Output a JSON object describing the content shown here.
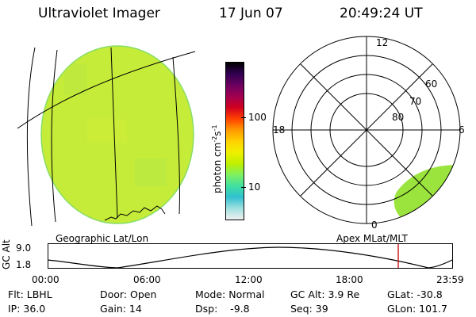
{
  "header": {
    "title": "Ultraviolet Imager",
    "date": "17 Jun 07",
    "time": "20:49:24 UT"
  },
  "colorbar": {
    "unit_label": "photon cm",
    "unit_exp1": "-2",
    "unit_mid": "s",
    "unit_exp2": "-1",
    "tick_100": "100",
    "tick_10": "10",
    "colors": [
      "#000000",
      "#300050",
      "#6a0060",
      "#a00050",
      "#d00020",
      "#ff4000",
      "#ff9900",
      "#ffd000",
      "#f0f000",
      "#c0f000",
      "#80f060",
      "#40e0a0",
      "#30c0d0",
      "#a0e0e0",
      "#f0f0f0"
    ]
  },
  "panels": {
    "left_label": "Geographic Lat/Lon",
    "right_label": "Apex MLat/MLT"
  },
  "polar": {
    "mlt_top": "12",
    "mlt_left": "18",
    "mlt_right": "6",
    "mlt_bottom": "0",
    "lat_60": "60",
    "lat_70": "70",
    "lat_80": "80"
  },
  "timeline": {
    "y_title": "GC Alt",
    "y_max": "9.0",
    "y_min": "1.8",
    "x_ticks": [
      "00:00",
      "06:00",
      "12:00",
      "18:00",
      "23:59"
    ],
    "current_marker_color": "#cc0000"
  },
  "footer": {
    "flt": "Flt: LBHL",
    "ip": "IP: 36.0",
    "door": "Door: Open",
    "gain": "Gain: 14",
    "mode": "Mode: Normal",
    "dsp": "Dsp:    -9.8",
    "gcalt": "GC Alt: 3.9 Re",
    "seq": "Seq: 39",
    "glat": "GLat: -30.8",
    "glon": "GLon: 101.7"
  },
  "colors": {
    "disk_fill": "#c6ec3a",
    "disk_edge": "#88dd66",
    "aurora_fill": "#9be43e"
  }
}
